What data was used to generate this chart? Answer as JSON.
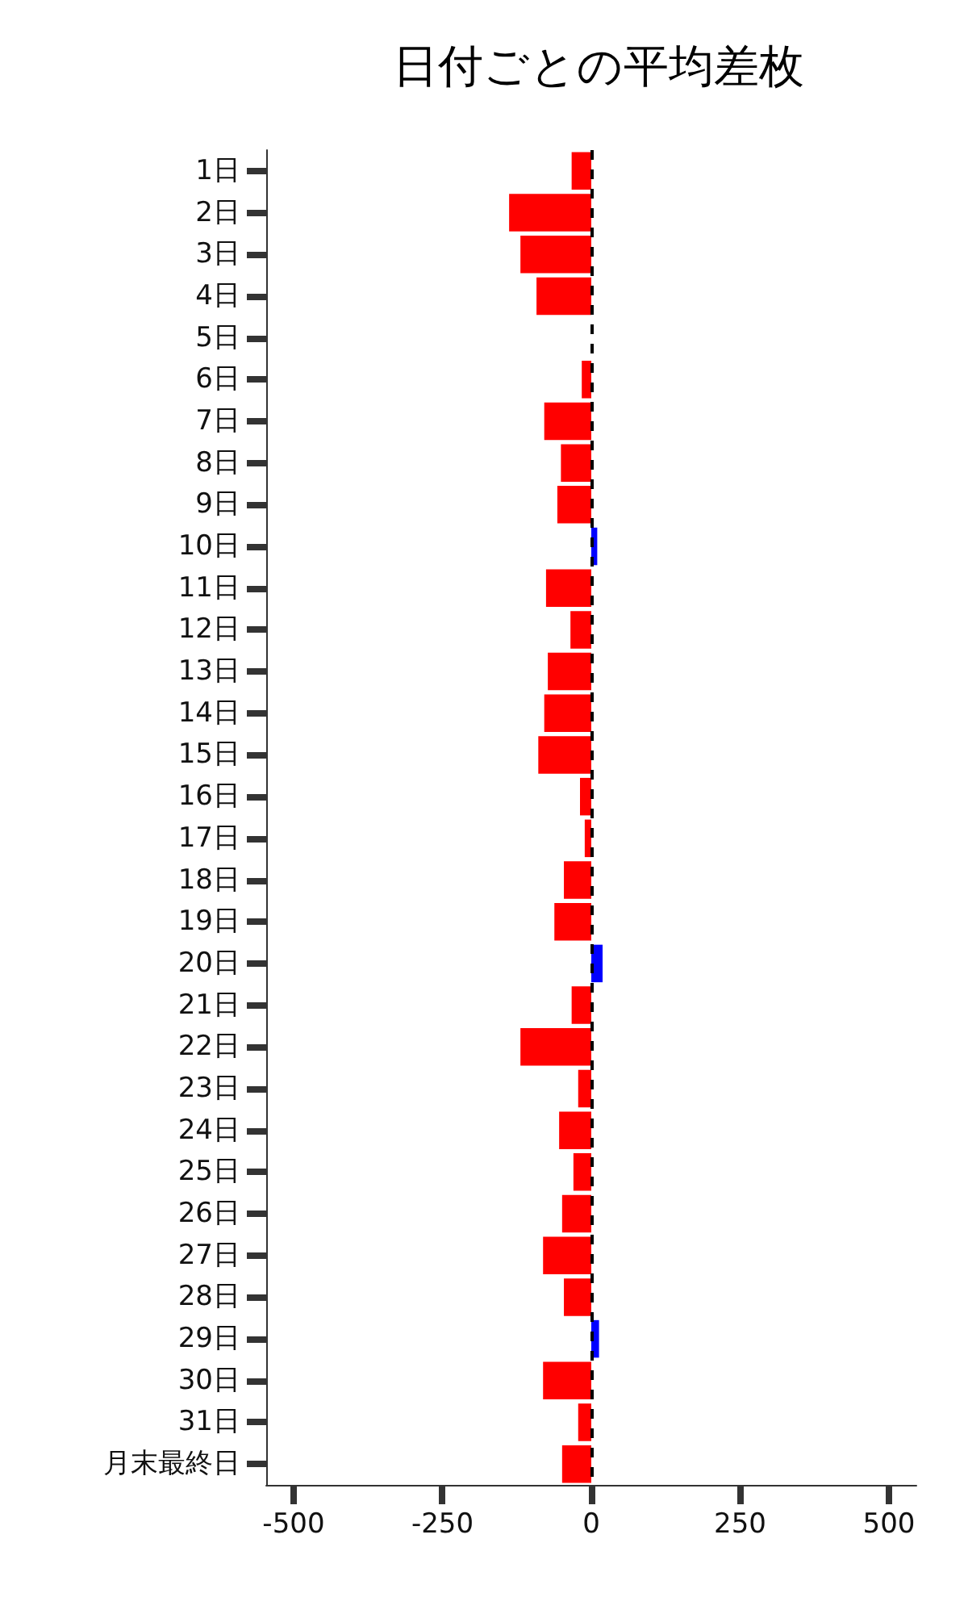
{
  "chart_data": {
    "type": "bar",
    "orientation": "horizontal",
    "title": "日付ごとの平均差枚",
    "categories": [
      "1日",
      "2日",
      "3日",
      "4日",
      "5日",
      "6日",
      "7日",
      "8日",
      "9日",
      "10日",
      "11日",
      "12日",
      "13日",
      "14日",
      "15日",
      "16日",
      "17日",
      "18日",
      "19日",
      "20日",
      "21日",
      "22日",
      "23日",
      "24日",
      "25日",
      "26日",
      "27日",
      "28日",
      "29日",
      "30日",
      "31日",
      "月末最終日"
    ],
    "values": [
      -33,
      -138,
      -119,
      -92,
      null,
      -16,
      -79,
      -51,
      -57,
      10,
      -76,
      -35,
      -73,
      -79,
      -89,
      -19,
      -11,
      -46,
      -62,
      19,
      -33,
      -119,
      -22,
      -54,
      -30,
      -49,
      -81,
      -46,
      13,
      -81,
      -22,
      -49
    ],
    "colors": [
      "#ff0000",
      "#ff0000",
      "#ff0000",
      "#ff0000",
      "#ff0000",
      "#ff0000",
      "#ff0000",
      "#ff0000",
      "#ff0000",
      "#0000ff",
      "#ff0000",
      "#ff0000",
      "#ff0000",
      "#ff0000",
      "#ff0000",
      "#ff0000",
      "#ff0000",
      "#ff0000",
      "#ff0000",
      "#0000ff",
      "#ff0000",
      "#ff0000",
      "#ff0000",
      "#ff0000",
      "#ff0000",
      "#ff0000",
      "#ff0000",
      "#ff0000",
      "#0000ff",
      "#ff0000",
      "#ff0000",
      "#ff0000"
    ],
    "xlim": [
      -546,
      546
    ],
    "xticks": [
      -500,
      -250,
      0,
      250,
      500
    ],
    "grid": false,
    "ref_lines": [
      {
        "axis": "x",
        "value": 0,
        "color": "#000000",
        "line_style": "dashed"
      }
    ]
  }
}
